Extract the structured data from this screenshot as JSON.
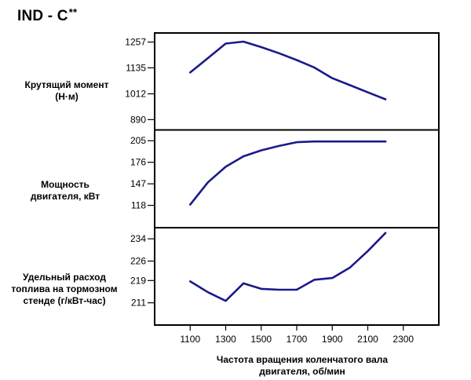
{
  "title": {
    "main": "IND - C",
    "sup": "**"
  },
  "x_axis_label_line1": "Частота вращения коленчатого вала",
  "x_axis_label_line2": "двигателя, об/мин",
  "line_color": "#1a1a8c",
  "chart_data": [
    {
      "type": "line",
      "ylabel_line1": "Крутящий момент",
      "ylabel_line2": "(Н·м)",
      "yticks": [
        890,
        1012,
        1135,
        1257
      ],
      "ylim": [
        843,
        1300
      ],
      "xlim": [
        900,
        2500
      ],
      "x": [
        1100,
        1200,
        1300,
        1400,
        1500,
        1600,
        1700,
        1800,
        1900,
        2000,
        2100,
        2200
      ],
      "values": [
        1113,
        1181,
        1250,
        1259,
        1233,
        1204,
        1172,
        1136,
        1086,
        1053,
        1019,
        986
      ]
    },
    {
      "type": "line",
      "ylabel_line1": "Мощность",
      "ylabel_line2": "двигателя, кВт",
      "yticks": [
        118,
        147,
        176,
        205
      ],
      "ylim": [
        89,
        219
      ],
      "xlim": [
        900,
        2500
      ],
      "x": [
        1100,
        1200,
        1300,
        1400,
        1500,
        1600,
        1700,
        1800,
        1900,
        2000,
        2100,
        2200
      ],
      "values": [
        119,
        149,
        170,
        184,
        192,
        198,
        203,
        204,
        204,
        204,
        204,
        204
      ]
    },
    {
      "type": "line",
      "ylabel_line1": "Удельный расход",
      "ylabel_line2": "топлива на тормозном",
      "ylabel_line3": "стенде (г/кВт-час)",
      "yticks": [
        211,
        219,
        226,
        234
      ],
      "ylim": [
        203,
        238
      ],
      "xlim": [
        900,
        2500
      ],
      "x": [
        1100,
        1200,
        1300,
        1400,
        1500,
        1600,
        1700,
        1800,
        1900,
        2000,
        2100,
        2200
      ],
      "values": [
        218.7,
        214.8,
        211.7,
        218.0,
        216.0,
        215.7,
        215.7,
        219.3,
        219.9,
        223.7,
        229.6,
        236.1
      ]
    }
  ],
  "x_ticks": [
    1100,
    1300,
    1500,
    1700,
    1900,
    2100,
    2300
  ]
}
